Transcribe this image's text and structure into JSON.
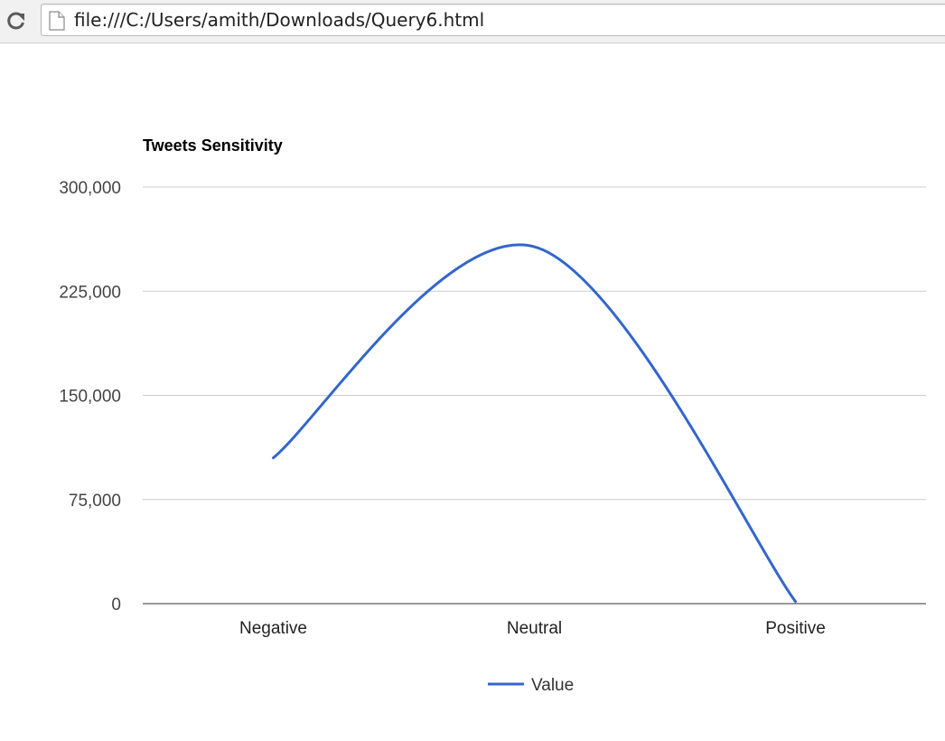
{
  "browser": {
    "url": "file:///C:/Users/amith/Downloads/Query6.html"
  },
  "chart_data": {
    "type": "line",
    "title": "Tweets Sensitivity",
    "xlabel": "",
    "ylabel": "",
    "categories": [
      "Negative",
      "Neutral",
      "Positive"
    ],
    "series": [
      {
        "name": "Value",
        "values": [
          105000,
          257000,
          1500
        ],
        "color": "#3366cc"
      }
    ],
    "ylim": [
      0,
      300000
    ],
    "yticks": [
      0,
      75000,
      150000,
      225000,
      300000
    ],
    "ytick_labels": [
      "0",
      "75,000",
      "150,000",
      "225,000",
      "300,000"
    ],
    "grid": true,
    "legend_position": "bottom",
    "curve": "smooth"
  }
}
